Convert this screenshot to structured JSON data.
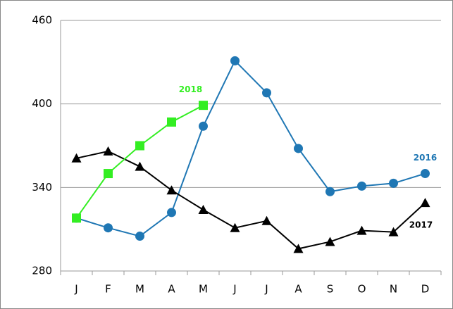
{
  "chart_data": {
    "type": "line",
    "categories": [
      "J",
      "F",
      "M",
      "A",
      "M",
      "J",
      "J",
      "A",
      "S",
      "O",
      "N",
      "D"
    ],
    "series": [
      {
        "name": "2016",
        "color": "#1f77b4",
        "marker": "circle",
        "values": [
          318,
          311,
          305,
          322,
          384,
          431,
          408,
          368,
          337,
          341,
          343,
          350
        ]
      },
      {
        "name": "2017",
        "color": "#000000",
        "marker": "triangle",
        "values": [
          361,
          366,
          355,
          338,
          324,
          311,
          316,
          296,
          301,
          309,
          308,
          329
        ]
      },
      {
        "name": "2018",
        "color": "#33ee22",
        "marker": "square",
        "values": [
          318,
          350,
          370,
          387,
          399,
          null,
          null,
          null,
          null,
          null,
          null,
          null
        ]
      }
    ],
    "ylim": [
      280,
      460
    ],
    "yticks": [
      280,
      340,
      400,
      460
    ],
    "grid": true
  }
}
